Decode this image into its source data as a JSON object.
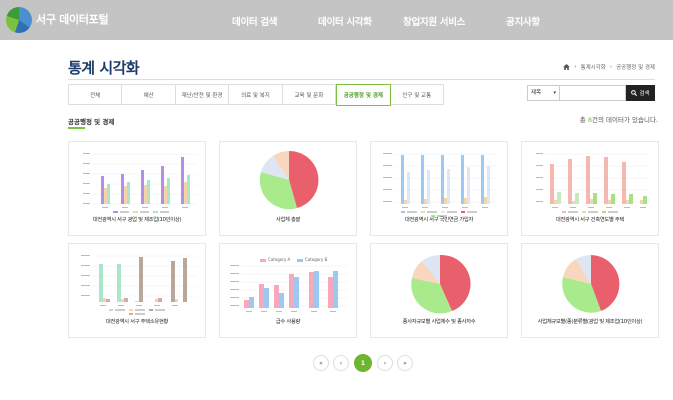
{
  "header": {
    "site_title": "서구 데이터포털",
    "nav": [
      "데이터 검색",
      "데이터 시각화",
      "창업지원 서비스",
      "공지사항"
    ]
  },
  "page": {
    "title": "통계 시각화",
    "breadcrumb": [
      "통계시각화",
      "공공행정 및 경제"
    ]
  },
  "tabs": [
    "전체",
    "예산",
    "재난/안전 및 환경",
    "의료 및 복지",
    "교육 및 문화",
    "공공행정 및 경제",
    "인구 및 교통"
  ],
  "active_tab": 5,
  "search": {
    "select_value": "제목",
    "button_label": "검색"
  },
  "section": {
    "title": "공공행정 및 경제",
    "count_prefix": "총",
    "count": "8",
    "count_suffix": "건의 데이터가 있습니다."
  },
  "cards": [
    {
      "label": "대전광역시 서구 광업 및 제조업(10인이상)"
    },
    {
      "label": "사업체 총괄"
    },
    {
      "label": "대전광역시 서구 국민연금 가입자"
    },
    {
      "label": "대전광역시 서구 건축연도별 주택"
    },
    {
      "label": "대전광역시 서구 주택소유현황"
    },
    {
      "label": "급수 사용량"
    },
    {
      "label": "종사자규모별 사업체수 및 종사자수"
    },
    {
      "label": "사업체규모별(종)분류별(광업 및 제조업(10인이상)"
    }
  ],
  "legends": {
    "water": [
      "Category A",
      "Category B"
    ]
  },
  "pagination": {
    "first": "«",
    "prev": "‹",
    "current": "1",
    "next": "›",
    "last": "»"
  },
  "colors": {
    "accent": "#7bc142",
    "title": "#1e3d6b",
    "header_bg": "#c4c4c4"
  }
}
